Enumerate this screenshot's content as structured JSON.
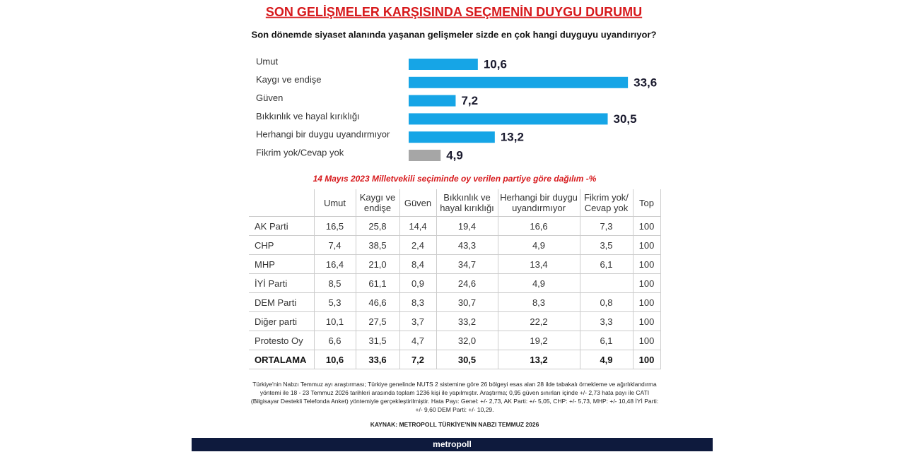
{
  "chart_data": {
    "type": "hbar",
    "title": "SON GELİŞMELER KARŞISINDA SEÇMENİN DUYGU DURUMU",
    "subtitle": "Son dönemde siyaset alanında yaşanan gelişmeler sizde en çok hangi duyguyu uyandırıyor?",
    "categories": [
      "Umut",
      "Kaygı ve endişe",
      "Güven",
      "Bıkkınlık ve hayal kırıklığı",
      "Herhangi bir duygu uyandırmıyor",
      "Fikrim yok/Cevap yok"
    ],
    "values": [
      10.6,
      33.6,
      7.2,
      30.5,
      13.2,
      4.9
    ],
    "value_labels": [
      "10,6",
      "33,6",
      "7,2",
      "30,5",
      "13,2",
      "4,9"
    ],
    "colors": [
      "#16a5e6",
      "#16a5e6",
      "#16a5e6",
      "#16a5e6",
      "#16a5e6",
      "#a6a6a6"
    ]
  },
  "table": {
    "caption": "14 Mayıs 2023 Milletvekili seçiminde oy verilen partiye göre dağılım -%",
    "header": [
      null,
      "Umut",
      "Kaygı ve endişe",
      "Güven",
      "Bıkkınlık ve hayal kırıklığı",
      "Herhangi bir duygu uyandırmıyor",
      "Fikrim yok/ Cevap yok",
      "Top"
    ],
    "rows": [
      [
        "AK Parti",
        "16,5",
        "25,8",
        "14,4",
        "19,4",
        "16,6",
        "7,3",
        "100"
      ],
      [
        "CHP",
        "7,4",
        "38,5",
        "2,4",
        "43,3",
        "4,9",
        "3,5",
        "100"
      ],
      [
        "MHP",
        "16,4",
        "21,0",
        "8,4",
        "34,7",
        "13,4",
        "6,1",
        "100"
      ],
      [
        "İYİ Parti",
        "8,5",
        "61,1",
        "0,9",
        "24,6",
        "4,9",
        null,
        "100"
      ],
      [
        "DEM Parti",
        "5,3",
        "46,6",
        "8,3",
        "30,7",
        "8,3",
        "0,8",
        "100"
      ],
      [
        "Diğer parti",
        "10,1",
        "27,5",
        "3,7",
        "33,2",
        "22,2",
        "3,3",
        "100"
      ],
      [
        "Protesto Oy",
        "6,6",
        "31,5",
        "4,7",
        "32,0",
        "19,2",
        "6,1",
        "100"
      ],
      [
        "ORTALAMA",
        "10,6",
        "33,6",
        "7,2",
        "30,5",
        "13,2",
        "4,9",
        "100"
      ]
    ]
  },
  "note": "Türkiye'nin Nabzı Temmuz ayı araştırması; Türkiye genelinde NUTS 2 sistemine göre 26 bölgeyi esas alan 28 ilde tabakalı örnekleme ve ağırlıklandırma yöntemi ile 18 - 23 Temmuz 2026 tarihleri arasında toplam 1236 kişi ile yapılmıştır. Araştırma; 0,95 güven sınırları içinde +/- 2,73 hata payı ile CATI (Bilgisayar Destekli Telefonda Anket) yöntemiyle gerçekleştirilmiştir. Hata Payı: Genel: +/- 2,73, AK Parti: +/- 5,05, CHP: +/- 5,73, MHP: +/- 10,48 İYİ Parti: +/- 9,60 DEM Parti: +/- 10,29.",
  "source": "KAYNAK: METROPOLL TÜRKİYE'NİN NABZI TEMMUZ 2026",
  "brand": "metropoll"
}
